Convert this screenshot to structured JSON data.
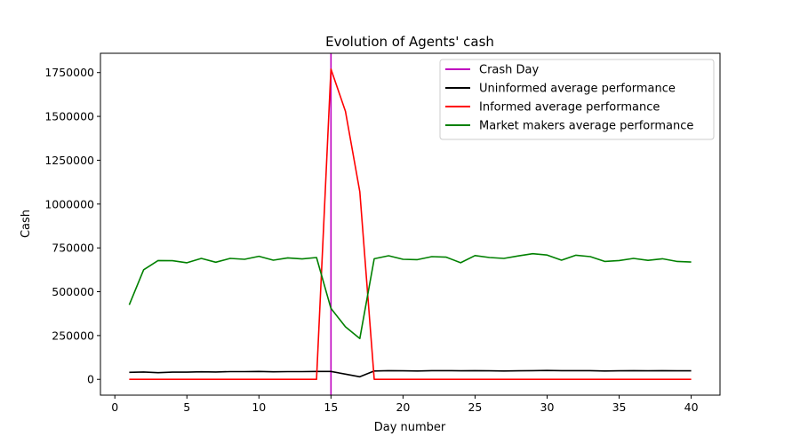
{
  "chart_data": {
    "type": "line",
    "title": "Evolution of Agents' cash",
    "xlabel": "Day number",
    "ylabel": "Cash",
    "xlim": [
      -1,
      42
    ],
    "ylim": [
      -90000,
      1860000
    ],
    "xticks": [
      0,
      5,
      10,
      15,
      20,
      25,
      30,
      35,
      40
    ],
    "yticks": [
      0,
      250000,
      500000,
      750000,
      1000000,
      1250000,
      1500000,
      1750000
    ],
    "grid": false,
    "legend_position": "top-right",
    "vline": {
      "name": "Crash Day",
      "x": 15,
      "color": "#bf00bf"
    },
    "x": [
      1,
      2,
      3,
      4,
      5,
      6,
      7,
      8,
      9,
      10,
      11,
      12,
      13,
      14,
      15,
      16,
      17,
      18,
      19,
      20,
      21,
      22,
      23,
      24,
      25,
      26,
      27,
      28,
      29,
      30,
      31,
      32,
      33,
      34,
      35,
      36,
      37,
      38,
      39,
      40
    ],
    "series": [
      {
        "name": "Uninformed average performance",
        "color": "#000000",
        "values": [
          40000,
          42000,
          38000,
          41000,
          41000,
          43000,
          42000,
          44000,
          44000,
          45000,
          43000,
          44000,
          44000,
          45000,
          45000,
          30000,
          15000,
          48000,
          50000,
          49000,
          48000,
          50000,
          50000,
          49000,
          50000,
          49000,
          48000,
          49000,
          50000,
          51000,
          50000,
          50000,
          50000,
          48000,
          49000,
          50000,
          49000,
          50000,
          49000,
          49000
        ]
      },
      {
        "name": "Informed average performance",
        "color": "#ff0000",
        "values": [
          0,
          0,
          0,
          0,
          0,
          0,
          0,
          0,
          0,
          0,
          0,
          0,
          0,
          0,
          1770000,
          1530000,
          1070000,
          0,
          0,
          0,
          0,
          0,
          0,
          0,
          0,
          0,
          0,
          0,
          0,
          0,
          0,
          0,
          0,
          0,
          0,
          0,
          0,
          0,
          0,
          0
        ]
      },
      {
        "name": "Market makers average performance",
        "color": "#008000",
        "values": [
          425000,
          625000,
          678000,
          677000,
          665000,
          690000,
          668000,
          690000,
          685000,
          702000,
          680000,
          693000,
          687000,
          695000,
          405000,
          300000,
          233000,
          688000,
          705000,
          685000,
          683000,
          700000,
          697000,
          665000,
          706000,
          695000,
          690000,
          704000,
          717000,
          709000,
          680000,
          708000,
          700000,
          673000,
          678000,
          690000,
          679000,
          688000,
          673000,
          669000
        ]
      }
    ]
  }
}
